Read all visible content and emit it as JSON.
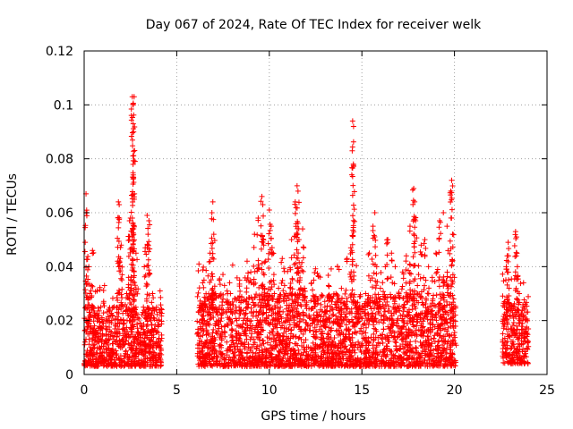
{
  "chart_data": {
    "type": "scatter",
    "title": "Day 067 of 2024, Rate Of TEC Index for receiver welk",
    "xlabel": "GPS time / hours",
    "ylabel": "ROTI / TECUs",
    "xlim": [
      0,
      25
    ],
    "ylim": [
      0,
      0.12
    ],
    "xticks": [
      0,
      5,
      10,
      15,
      20,
      25
    ],
    "xtick_labels": [
      "0",
      "5",
      "10",
      "15",
      "20",
      "25"
    ],
    "yticks": [
      0,
      0.02,
      0.04,
      0.06,
      0.08,
      0.1,
      0.12
    ],
    "ytick_labels": [
      "0",
      "0.02",
      "0.04",
      "0.06",
      "0.08",
      "0.1",
      "0.12"
    ],
    "grid": true,
    "marker": "+",
    "color": "#ff0000",
    "series": [
      {
        "name": "ROTI",
        "points": [
          [
            0.05,
            0.012
          ],
          [
            0.1,
            0.02
          ],
          [
            0.1,
            0.067
          ],
          [
            0.15,
            0.06
          ],
          [
            0.2,
            0.015
          ],
          [
            0.25,
            0.04
          ],
          [
            0.3,
            0.03
          ],
          [
            0.35,
            0.018
          ],
          [
            0.4,
            0.033
          ],
          [
            0.45,
            0.046
          ],
          [
            0.5,
            0.025
          ],
          [
            0.55,
            0.01
          ],
          [
            0.6,
            0.022
          ],
          [
            0.7,
            0.031
          ],
          [
            0.8,
            0.012
          ],
          [
            0.9,
            0.025
          ],
          [
            1.0,
            0.017
          ],
          [
            1.1,
            0.033
          ],
          [
            1.2,
            0.02
          ],
          [
            1.3,
            0.011
          ],
          [
            1.4,
            0.016
          ],
          [
            1.5,
            0.022
          ],
          [
            1.6,
            0.013
          ],
          [
            1.7,
            0.018
          ],
          [
            1.8,
            0.03
          ],
          [
            1.85,
            0.064
          ],
          [
            1.9,
            0.058
          ],
          [
            1.95,
            0.043
          ],
          [
            2.0,
            0.048
          ],
          [
            2.05,
            0.037
          ],
          [
            2.1,
            0.02
          ],
          [
            2.2,
            0.015
          ],
          [
            2.3,
            0.025
          ],
          [
            2.4,
            0.036
          ],
          [
            2.45,
            0.057
          ],
          [
            2.5,
            0.058
          ],
          [
            2.55,
            0.032
          ],
          [
            2.6,
            0.103
          ],
          [
            2.65,
            0.1
          ],
          [
            2.65,
            0.093
          ],
          [
            2.65,
            0.074
          ],
          [
            2.7,
            0.103
          ],
          [
            2.75,
            0.014
          ],
          [
            2.8,
            0.045
          ],
          [
            2.9,
            0.021
          ],
          [
            3.0,
            0.012
          ],
          [
            3.1,
            0.018
          ],
          [
            3.2,
            0.025
          ],
          [
            3.3,
            0.047
          ],
          [
            3.4,
            0.059
          ],
          [
            3.45,
            0.052
          ],
          [
            3.5,
            0.057
          ],
          [
            3.6,
            0.022
          ],
          [
            3.7,
            0.03
          ],
          [
            3.8,
            0.017
          ],
          [
            3.9,
            0.024
          ],
          [
            4.0,
            0.012
          ],
          [
            4.1,
            0.031
          ],
          [
            6.1,
            0.015
          ],
          [
            6.2,
            0.041
          ],
          [
            6.3,
            0.025
          ],
          [
            6.4,
            0.034
          ],
          [
            6.5,
            0.02
          ],
          [
            6.6,
            0.012
          ],
          [
            6.7,
            0.028
          ],
          [
            6.8,
            0.045
          ],
          [
            6.9,
            0.06
          ],
          [
            6.95,
            0.064
          ],
          [
            7.0,
            0.052
          ],
          [
            7.1,
            0.03
          ],
          [
            7.2,
            0.016
          ],
          [
            7.3,
            0.035
          ],
          [
            7.4,
            0.022
          ],
          [
            7.5,
            0.028
          ],
          [
            7.6,
            0.018
          ],
          [
            7.7,
            0.012
          ],
          [
            7.8,
            0.024
          ],
          [
            7.9,
            0.03
          ],
          [
            8.0,
            0.014
          ],
          [
            8.2,
            0.025
          ],
          [
            8.4,
            0.035
          ],
          [
            8.6,
            0.02
          ],
          [
            8.8,
            0.042
          ],
          [
            9.0,
            0.038
          ],
          [
            9.2,
            0.052
          ],
          [
            9.4,
            0.058
          ],
          [
            9.6,
            0.066
          ],
          [
            9.65,
            0.063
          ],
          [
            9.7,
            0.048
          ],
          [
            9.8,
            0.042
          ],
          [
            9.9,
            0.03
          ],
          [
            10.0,
            0.061
          ],
          [
            10.1,
            0.055
          ],
          [
            10.2,
            0.045
          ],
          [
            10.3,
            0.02
          ],
          [
            10.5,
            0.032
          ],
          [
            10.7,
            0.043
          ],
          [
            10.9,
            0.03
          ],
          [
            11.0,
            0.022
          ],
          [
            11.2,
            0.05
          ],
          [
            11.4,
            0.064
          ],
          [
            11.5,
            0.07
          ],
          [
            11.55,
            0.068
          ],
          [
            11.6,
            0.05
          ],
          [
            11.7,
            0.04
          ],
          [
            11.8,
            0.054
          ],
          [
            11.9,
            0.032
          ],
          [
            12.0,
            0.022
          ],
          [
            12.2,
            0.018
          ],
          [
            12.4,
            0.035
          ],
          [
            12.6,
            0.028
          ],
          [
            12.8,
            0.015
          ],
          [
            13.0,
            0.025
          ],
          [
            13.2,
            0.033
          ],
          [
            13.4,
            0.022
          ],
          [
            13.6,
            0.03
          ],
          [
            13.8,
            0.018
          ],
          [
            14.0,
            0.012
          ],
          [
            14.2,
            0.043
          ],
          [
            14.4,
            0.047
          ],
          [
            14.5,
            0.094
          ],
          [
            14.55,
            0.092
          ],
          [
            14.6,
            0.011
          ],
          [
            14.8,
            0.012
          ],
          [
            15.0,
            0.015
          ],
          [
            15.2,
            0.03
          ],
          [
            15.4,
            0.045
          ],
          [
            15.6,
            0.055
          ],
          [
            15.7,
            0.06
          ],
          [
            15.8,
            0.04
          ],
          [
            16.0,
            0.032
          ],
          [
            16.2,
            0.025
          ],
          [
            16.4,
            0.05
          ],
          [
            16.6,
            0.045
          ],
          [
            16.8,
            0.04
          ],
          [
            17.0,
            0.03
          ],
          [
            17.2,
            0.038
          ],
          [
            17.4,
            0.044
          ],
          [
            17.6,
            0.055
          ],
          [
            17.8,
            0.069
          ],
          [
            17.85,
            0.064
          ],
          [
            17.9,
            0.057
          ],
          [
            18.0,
            0.033
          ],
          [
            18.2,
            0.048
          ],
          [
            18.4,
            0.05
          ],
          [
            18.6,
            0.04
          ],
          [
            18.8,
            0.036
          ],
          [
            19.0,
            0.045
          ],
          [
            19.2,
            0.057
          ],
          [
            19.4,
            0.06
          ],
          [
            19.6,
            0.055
          ],
          [
            19.8,
            0.068
          ],
          [
            19.85,
            0.072
          ],
          [
            19.9,
            0.052
          ],
          [
            20.0,
            0.036
          ],
          [
            20.05,
            0.022
          ],
          [
            22.6,
            0.012
          ],
          [
            22.7,
            0.025
          ],
          [
            22.8,
            0.04
          ],
          [
            22.85,
            0.044
          ],
          [
            22.9,
            0.049
          ],
          [
            22.95,
            0.032
          ],
          [
            23.0,
            0.022
          ],
          [
            23.1,
            0.016
          ],
          [
            23.2,
            0.025
          ],
          [
            23.3,
            0.053
          ],
          [
            23.35,
            0.051
          ],
          [
            23.4,
            0.04
          ],
          [
            23.5,
            0.03
          ],
          [
            23.6,
            0.02
          ],
          [
            23.7,
            0.025
          ],
          [
            23.8,
            0.012
          ],
          [
            23.9,
            0.015
          ]
        ],
        "band_segments": [
          {
            "start": 0.0,
            "end": 4.2,
            "base_min": 0.003,
            "base_max": 0.025
          },
          {
            "start": 6.1,
            "end": 20.1,
            "base_min": 0.003,
            "base_max": 0.03
          },
          {
            "start": 22.6,
            "end": 24.0,
            "base_min": 0.004,
            "base_max": 0.028
          }
        ]
      }
    ]
  }
}
